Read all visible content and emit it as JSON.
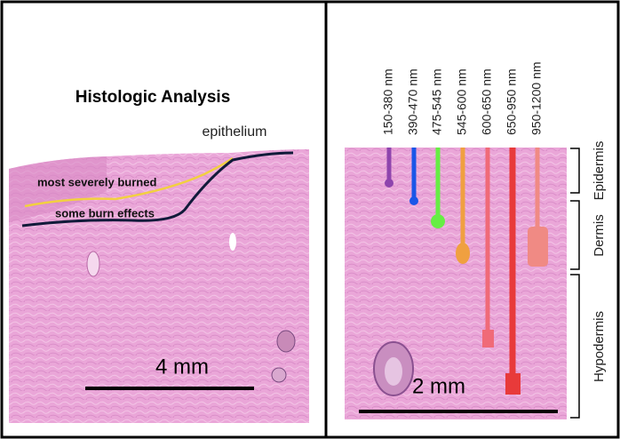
{
  "left_panel": {
    "title": "Histologic Analysis",
    "epithelium": "epithelium",
    "label_severe": "most severely burned",
    "label_some": "some burn effects",
    "scale_bar": "4 mm"
  },
  "right_panel": {
    "wavelengths": [
      "150-380 nm",
      "390-470 nm",
      "475-545 nm",
      "545-600 nm",
      "600-650 nm",
      "650-950 nm",
      "950-1200 nm"
    ],
    "layers": [
      "Epidermis",
      "Dermis",
      "Hypodermis"
    ],
    "scale_bar": "2 mm"
  }
}
